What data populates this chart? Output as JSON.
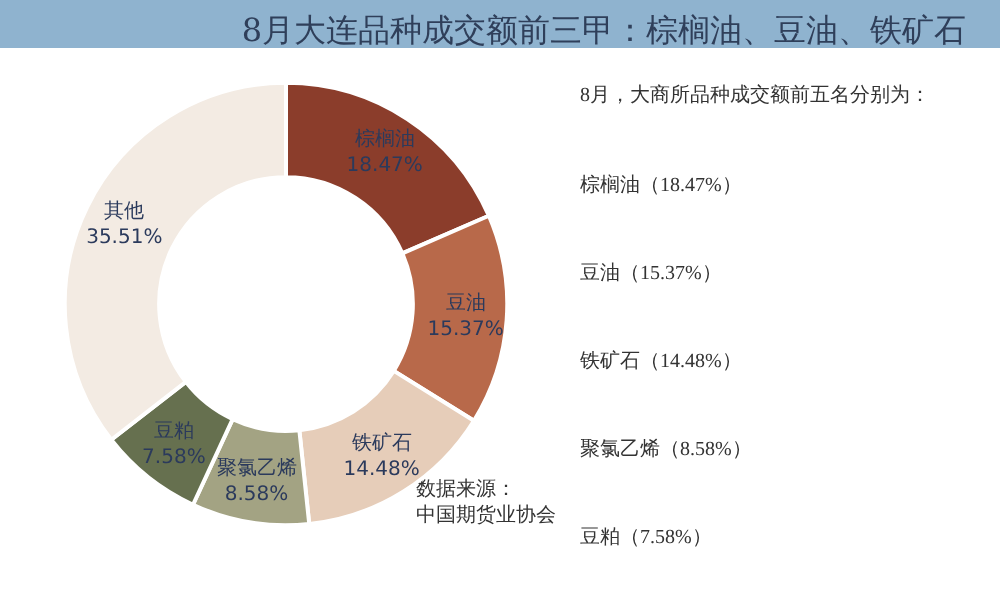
{
  "chart_data": {
    "type": "donut",
    "title": "8月大连品种成交额前三甲：棕榈油、豆油、铁矿石",
    "categories": [
      "棕榈油",
      "豆油",
      "铁矿石",
      "聚氯乙烯",
      "豆粕",
      "其他"
    ],
    "values": [
      18.47,
      15.37,
      14.48,
      8.58,
      7.58,
      35.51
    ],
    "colors": [
      "#8b3d2b",
      "#b8694a",
      "#e6cdb9",
      "#a3a383",
      "#66704f",
      "#f3ebe3"
    ],
    "value_labels": [
      "18.47%",
      "15.37%",
      "14.48%",
      "8.58%",
      "7.58%",
      "35.51%"
    ],
    "legend": false,
    "annotations": [
      "8月，大商所品种成交额前五名分别为：",
      "棕榈油（18.47%）",
      "豆油（15.37%）",
      "铁矿石（14.48%）",
      "聚氯乙烯（8.58%）",
      "豆粕（7.58%）",
      "数据来源：",
      "中国期货业协会"
    ]
  }
}
